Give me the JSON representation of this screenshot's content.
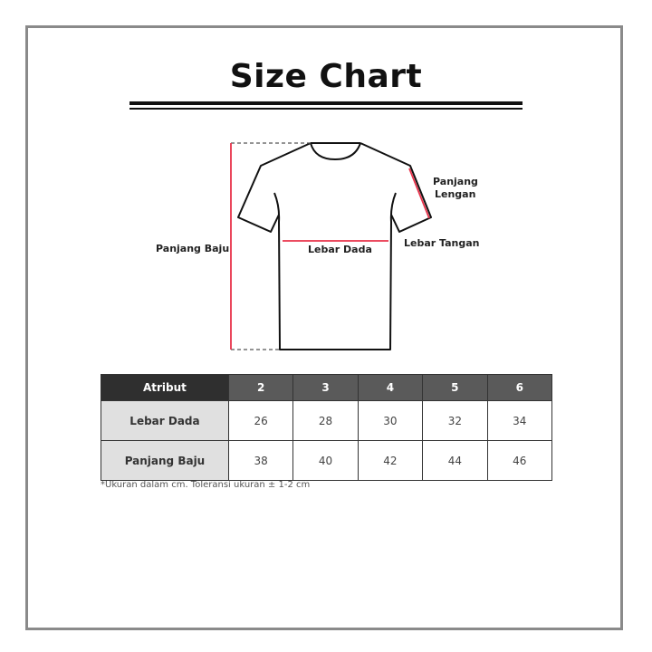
{
  "title": "Size Chart",
  "diagram": {
    "labels": {
      "panjang_baju": "Panjang Baju",
      "lebar_dada": "Lebar Dada",
      "panjang_lengan": [
        "Panjang",
        "Lengan"
      ],
      "lebar_tangan": "Lebar Tangan"
    },
    "measure_color": "#e8324a"
  },
  "table": {
    "headers": [
      "Atribut",
      "2",
      "3",
      "4",
      "5",
      "6"
    ],
    "rows": [
      {
        "label": "Lebar Dada",
        "values": [
          "26",
          "28",
          "30",
          "32",
          "34"
        ]
      },
      {
        "label": "Panjang Baju",
        "values": [
          "38",
          "40",
          "42",
          "44",
          "46"
        ]
      }
    ]
  },
  "note": "*Ukuran dalam cm. Toleransi ukuran ± 1-2 cm"
}
